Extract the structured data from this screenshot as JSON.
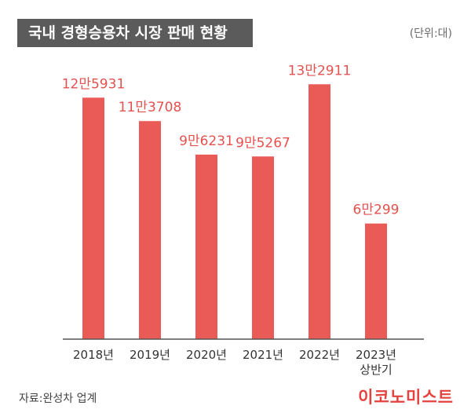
{
  "header": {
    "title": "국내 경형승용차 시장 판매 현황",
    "unit": "(단위:대)"
  },
  "footer": {
    "source": "자료:완성차 업계",
    "logo": "이코노미스트"
  },
  "colors": {
    "bar": "#ea5b58",
    "value_label": "#e4524f",
    "title_bg": "#5b5b5b"
  },
  "chart_data": {
    "type": "bar",
    "title": "국내 경형승용차 시장 판매 현황",
    "ylabel": "(단위:대)",
    "categories": [
      [
        "2018년"
      ],
      [
        "2019년"
      ],
      [
        "2020년"
      ],
      [
        "2021년"
      ],
      [
        "2022년"
      ],
      [
        "2023년",
        "상반기"
      ]
    ],
    "values": [
      125931,
      113708,
      96231,
      95267,
      132911,
      60299
    ],
    "value_labels": [
      "12만5931",
      "11만3708",
      "9만6231",
      "9만5267",
      "13만2911",
      "6만299"
    ],
    "ylim": [
      0,
      140000
    ],
    "grid": false,
    "legend": "none"
  }
}
